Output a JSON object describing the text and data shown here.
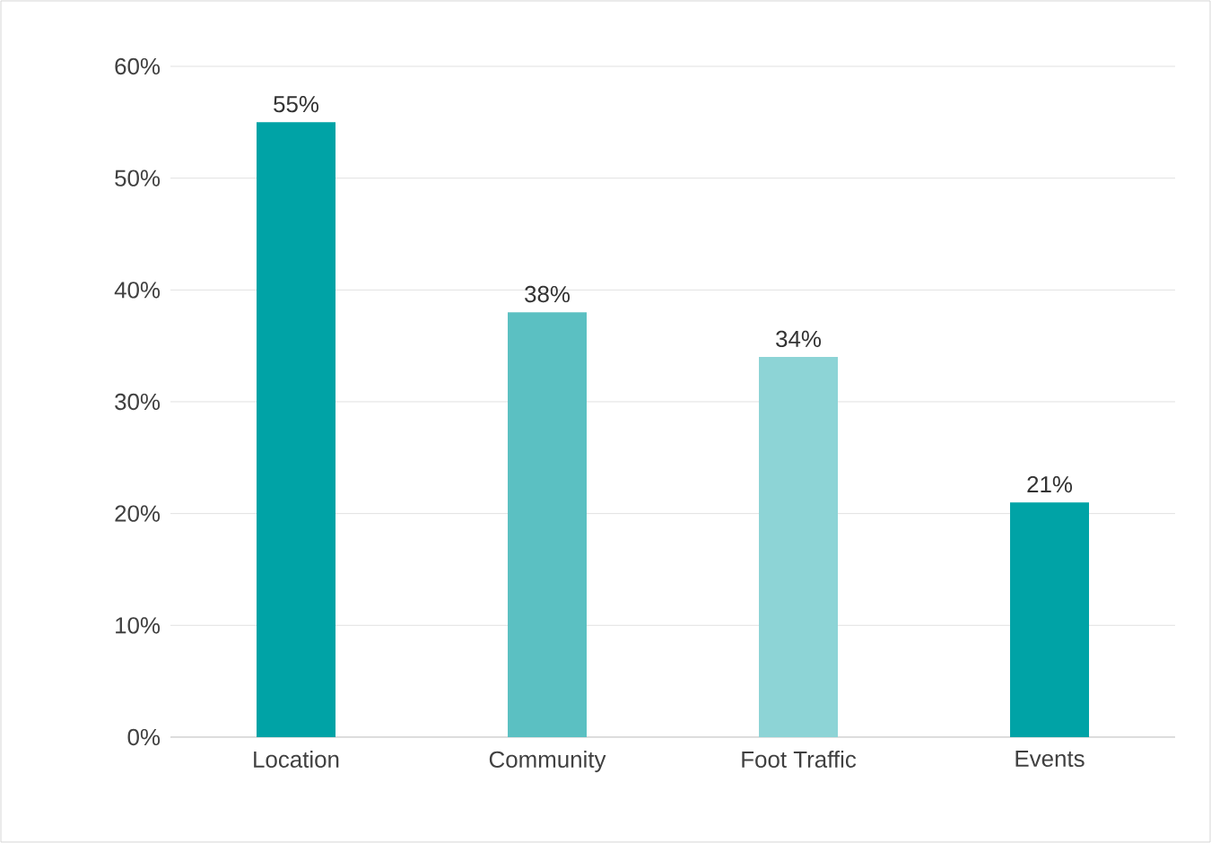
{
  "chart_data": {
    "type": "bar",
    "categories": [
      "Location",
      "Community",
      "Foot Traffic",
      "Events"
    ],
    "values": [
      55,
      38,
      34,
      21
    ],
    "colors": [
      "#00a3a6",
      "#5bc0c2",
      "#8dd4d6",
      "#00a3a6"
    ],
    "value_labels": [
      "55%",
      "38%",
      "34%",
      "21%"
    ],
    "ylim": [
      0,
      60
    ],
    "yticks": [
      {
        "value": 0,
        "label": "0%"
      },
      {
        "value": 10,
        "label": "10%"
      },
      {
        "value": 20,
        "label": "20%"
      },
      {
        "value": 30,
        "label": "30%"
      },
      {
        "value": 40,
        "label": "40%"
      },
      {
        "value": 50,
        "label": "50%"
      },
      {
        "value": 60,
        "label": "60%"
      }
    ],
    "grid": "y"
  }
}
